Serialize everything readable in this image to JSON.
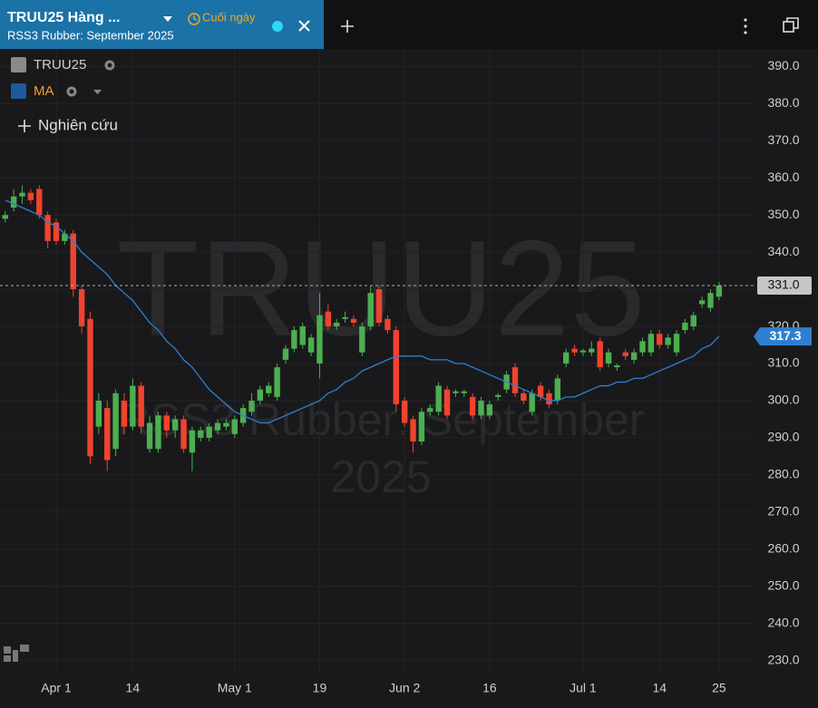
{
  "header": {
    "symbol": "TRUU25 Hàng ...",
    "timeframe": "Cuối ngày",
    "description": "RSS3 Rubber: September 2025"
  },
  "study_button": "Nghiên cứu",
  "chart_data": {
    "type": "candlestick",
    "watermark": [
      "TRUU25",
      "RSS3 Rubber: September",
      "2025"
    ],
    "categories": [
      null,
      null,
      null,
      null,
      null,
      null,
      "Apr 1",
      null,
      null,
      null,
      null,
      null,
      null,
      null,
      null,
      "14",
      null,
      null,
      null,
      null,
      null,
      null,
      null,
      null,
      null,
      null,
      null,
      "May 1",
      null,
      null,
      null,
      null,
      null,
      null,
      null,
      null,
      null,
      "19",
      null,
      null,
      null,
      null,
      null,
      null,
      null,
      null,
      null,
      "Jun 2",
      null,
      null,
      null,
      null,
      null,
      null,
      null,
      null,
      null,
      "16",
      null,
      null,
      null,
      null,
      null,
      null,
      null,
      null,
      null,
      null,
      "Jul 1",
      null,
      null,
      null,
      null,
      null,
      null,
      null,
      null,
      "14",
      null,
      null,
      null,
      null,
      null,
      null,
      "25"
    ],
    "series": [
      {
        "name": "TRUU25",
        "up_color": "#4caf50",
        "down_color": "#f0432e",
        "open": [
          349,
          352,
          355,
          356,
          357,
          350,
          348,
          343,
          345,
          330,
          322,
          293,
          298,
          287,
          300,
          293,
          304,
          287,
          287,
          296,
          292,
          295,
          286,
          290,
          290,
          292,
          293,
          291,
          294,
          297,
          300,
          302,
          301,
          311,
          314,
          315,
          313,
          310,
          324,
          320,
          322,
          322,
          313,
          320,
          330,
          322,
          319,
          300,
          295,
          289,
          297,
          297,
          303,
          302,
          302,
          301,
          296,
          296,
          301,
          303,
          309,
          302,
          297,
          304,
          302,
          300,
          310,
          314,
          313,
          313,
          316,
          310,
          309,
          313,
          311,
          313,
          313,
          318,
          315,
          313,
          319,
          320,
          326,
          325,
          328
        ],
        "high": [
          351,
          357,
          358,
          357,
          358,
          351,
          349,
          346,
          346,
          331,
          324,
          302,
          300,
          303,
          302,
          306,
          305,
          296,
          297,
          297,
          296,
          296,
          293,
          293,
          294,
          295,
          295,
          296,
          299,
          302,
          304,
          305,
          310,
          315,
          320,
          321,
          318,
          329,
          326,
          322,
          324,
          323,
          321,
          331,
          331,
          323,
          320,
          301,
          296,
          298,
          299,
          305,
          304,
          303,
          303,
          302,
          301,
          300,
          302,
          308,
          310,
          303,
          303,
          305,
          303,
          307,
          314,
          315,
          314,
          316,
          317,
          314,
          310,
          314,
          314,
          317,
          319,
          319,
          318,
          319,
          322,
          324,
          328,
          330,
          332
        ],
        "low": [
          348,
          351,
          353,
          353,
          349,
          341,
          342,
          342,
          328,
          318,
          283,
          291,
          281,
          285,
          291,
          292,
          291,
          286,
          286,
          290,
          290,
          286,
          281,
          289,
          289,
          291,
          292,
          290,
          293,
          296,
          299,
          301,
          300,
          310,
          313,
          314,
          312,
          306,
          319,
          319,
          321,
          320,
          312,
          319,
          320,
          318,
          297,
          293,
          286,
          288,
          296,
          296,
          295,
          301,
          301,
          295,
          295,
          295,
          300,
          302,
          301,
          299,
          296,
          300,
          298,
          299,
          309,
          312,
          312,
          312,
          308,
          309,
          308,
          311,
          310,
          312,
          312,
          314,
          314,
          312,
          318,
          319,
          325,
          324,
          327
        ],
        "close": [
          350,
          355,
          356,
          354,
          350,
          343,
          343,
          345,
          330,
          320,
          285,
          300,
          284,
          302,
          293,
          304,
          293,
          294,
          296,
          292,
          295,
          287,
          292,
          292,
          293,
          294,
          294,
          295,
          298,
          300,
          303,
          304,
          309,
          314,
          319,
          320,
          317,
          323,
          320,
          321,
          322.5,
          321,
          320,
          329,
          321,
          319,
          299,
          294,
          289,
          297,
          298,
          304,
          296,
          302.5,
          302.5,
          296,
          300,
          299,
          301.5,
          307,
          302,
          300,
          302,
          301,
          299,
          306,
          313,
          313,
          313.5,
          314,
          309,
          313,
          309.5,
          312,
          313,
          316,
          318,
          315,
          317,
          318,
          321,
          323,
          327,
          329,
          331
        ]
      },
      {
        "name": "MA",
        "color": "#2f7fd0",
        "legend_text_color": "#f0a030",
        "values": [
          354,
          353,
          352,
          351,
          350,
          348,
          347,
          345,
          343,
          340,
          338,
          336,
          334,
          331,
          329,
          327,
          324,
          321,
          319,
          316,
          314,
          311,
          309,
          306,
          303,
          301,
          299,
          297,
          296,
          295,
          294,
          294,
          295,
          296,
          297,
          298,
          299,
          300,
          302,
          303,
          305,
          306,
          308,
          309,
          310,
          311,
          312,
          312,
          312,
          312,
          311,
          311,
          311,
          310,
          310,
          309,
          308,
          307,
          306,
          305,
          304,
          303,
          302,
          301,
          300,
          300,
          301,
          301,
          302,
          303,
          304,
          304,
          305,
          305,
          306,
          306,
          307,
          308,
          309,
          310,
          311,
          312,
          314,
          315,
          317.3
        ]
      }
    ],
    "last_price": {
      "value": 331,
      "label": "331.0"
    },
    "ylim": [
      226,
      394
    ],
    "yticks": [
      {
        "value": 230,
        "label": "230.0"
      },
      {
        "value": 240,
        "label": "240.0"
      },
      {
        "value": 250,
        "label": "250.0"
      },
      {
        "value": 260,
        "label": "260.0"
      },
      {
        "value": 270,
        "label": "270.0"
      },
      {
        "value": 280,
        "label": "280.0"
      },
      {
        "value": 290,
        "label": "290.0"
      },
      {
        "value": 300,
        "label": "300.0"
      },
      {
        "value": 310,
        "label": "310.0"
      },
      {
        "value": 320,
        "label": "320.0"
      },
      {
        "value": 330,
        "label": "330.0"
      },
      {
        "value": 340,
        "label": "340.0"
      },
      {
        "value": 350,
        "label": "350.0"
      },
      {
        "value": 360,
        "label": "360.0"
      },
      {
        "value": 370,
        "label": "370.0"
      },
      {
        "value": 380,
        "label": "380.0"
      },
      {
        "value": 390,
        "label": "390.0"
      }
    ],
    "grid": true
  }
}
